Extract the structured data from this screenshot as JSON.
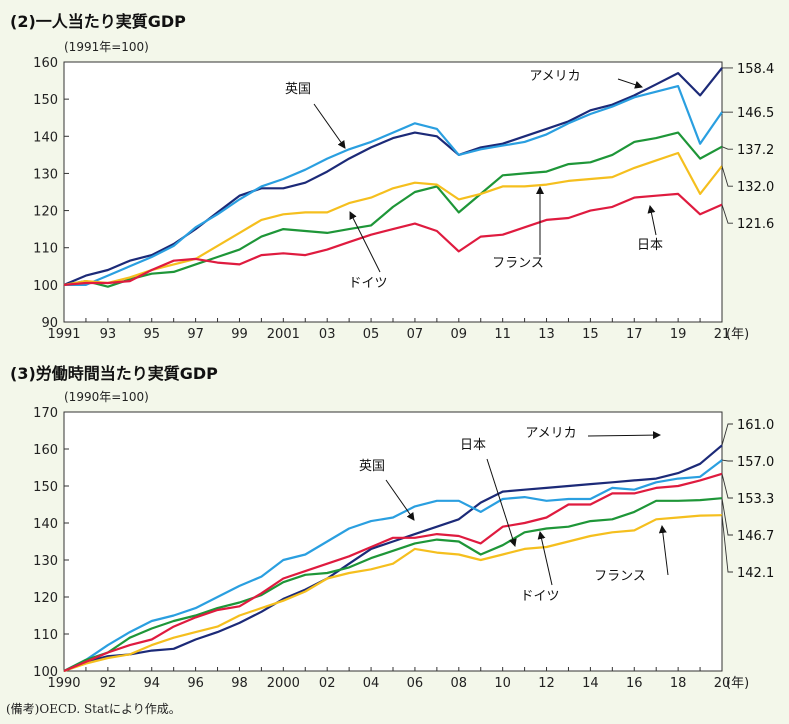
{
  "page": {
    "note": "(備考)OECD. Statにより作成。"
  },
  "colors": {
    "usa": "#1c2a78",
    "uk": "#2a9fe0",
    "germany": "#1e9638",
    "france": "#f5bf1e",
    "japan": "#df1b3f",
    "plot_bg": "#ffffff",
    "page_bg": "#f3f7ea"
  },
  "chart_data": [
    {
      "type": "line",
      "title": "(2)一人当たり実質GDP",
      "subtitle": "(1991年=100)",
      "x_unit_label": "(年)",
      "x": [
        1991,
        1992,
        1993,
        1994,
        1995,
        1996,
        1997,
        1998,
        1999,
        2000,
        2001,
        2002,
        2003,
        2004,
        2005,
        2006,
        2007,
        2008,
        2009,
        2010,
        2011,
        2012,
        2013,
        2014,
        2015,
        2016,
        2017,
        2018,
        2019,
        2020,
        2021
      ],
      "x_tick_labels": [
        "1991",
        "93",
        "95",
        "97",
        "99",
        "2001",
        "03",
        "05",
        "07",
        "09",
        "11",
        "13",
        "15",
        "17",
        "19",
        "21"
      ],
      "y_ticks": [
        90,
        100,
        110,
        120,
        130,
        140,
        150,
        160
      ],
      "ylim": [
        90,
        160
      ],
      "series": [
        {
          "key": "usa",
          "name": "アメリカ",
          "end_label": "158.4",
          "values": [
            100,
            102.5,
            104,
            106.5,
            108,
            111,
            115,
            119.5,
            124,
            126,
            126,
            127.5,
            130.5,
            134,
            137,
            139.5,
            141,
            140,
            135,
            137,
            138,
            140,
            142,
            144,
            147,
            148.5,
            151,
            154,
            157,
            151,
            158.4
          ]
        },
        {
          "key": "uk",
          "name": "英国",
          "end_label": "146.5",
          "values": [
            100,
            100,
            102.5,
            105,
            107.5,
            110.5,
            115.5,
            119,
            123,
            126.5,
            128.5,
            131,
            134,
            136.5,
            138.5,
            141,
            143.5,
            142,
            135,
            136.5,
            137.5,
            138.5,
            140.5,
            143.5,
            146,
            148,
            150.5,
            152,
            153.5,
            138,
            146.5
          ]
        },
        {
          "key": "germany",
          "name": "ドイツ",
          "end_label": "137.2",
          "values": [
            100,
            101,
            99.5,
            101.5,
            103,
            103.5,
            105.5,
            107.5,
            109.5,
            113,
            115,
            114.5,
            114,
            115,
            116,
            121,
            125,
            126.5,
            119.5,
            124.5,
            129.5,
            130,
            130.5,
            132.5,
            133,
            135,
            138.5,
            139.5,
            141,
            134,
            137.2
          ]
        },
        {
          "key": "france",
          "name": "フランス",
          "end_label": "132.0",
          "values": [
            100,
            101,
            100.5,
            102,
            104,
            105.5,
            107,
            110.5,
            114,
            117.5,
            119,
            119.5,
            119.5,
            122,
            123.5,
            126,
            127.5,
            127,
            123,
            124.5,
            126.5,
            126.5,
            127,
            128,
            128.5,
            129,
            131.5,
            133.5,
            135.5,
            124.5,
            132.0
          ]
        },
        {
          "key": "japan",
          "name": "日本",
          "end_label": "121.6",
          "values": [
            100,
            100.5,
            100.5,
            101,
            104,
            106.5,
            107,
            106,
            105.5,
            108,
            108.5,
            108,
            109.5,
            111.5,
            113.5,
            115,
            116.5,
            114.5,
            109,
            113,
            113.5,
            115.5,
            117.5,
            118,
            120,
            121,
            123.5,
            124,
            124.5,
            119,
            121.6
          ]
        }
      ]
    },
    {
      "type": "line",
      "title": "(3)労働時間当たり実質GDP",
      "subtitle": "(1990年=100)",
      "x_unit_label": "(年)",
      "x": [
        1990,
        1991,
        1992,
        1993,
        1994,
        1995,
        1996,
        1997,
        1998,
        1999,
        2000,
        2001,
        2002,
        2003,
        2004,
        2005,
        2006,
        2007,
        2008,
        2009,
        2010,
        2011,
        2012,
        2013,
        2014,
        2015,
        2016,
        2017,
        2018,
        2019,
        2020
      ],
      "x_tick_labels": [
        "1990",
        "92",
        "94",
        "96",
        "98",
        "2000",
        "02",
        "04",
        "06",
        "08",
        "10",
        "12",
        "14",
        "16",
        "18",
        "20"
      ],
      "y_ticks": [
        100,
        110,
        120,
        130,
        140,
        150,
        160,
        170
      ],
      "ylim": [
        100,
        170
      ],
      "series": [
        {
          "key": "usa",
          "name": "アメリカ",
          "end_label": "161.0",
          "values": [
            100,
            102.5,
            104,
            104.5,
            105.5,
            106,
            108.5,
            110.5,
            113,
            116,
            119.5,
            122,
            125,
            129,
            133,
            135,
            137,
            139,
            141,
            145.5,
            148.5,
            149,
            149.5,
            150,
            150.5,
            151,
            151.5,
            152,
            153.5,
            156,
            161.0
          ]
        },
        {
          "key": "uk",
          "name": "英国",
          "end_label": "157.0",
          "values": [
            100,
            103,
            107,
            110.5,
            113.5,
            115,
            117,
            120,
            123,
            125.5,
            130,
            131.5,
            135,
            138.5,
            140.5,
            141.5,
            144.5,
            146,
            146,
            143,
            146.5,
            147,
            146,
            146.5,
            146.5,
            149.5,
            149,
            151,
            152,
            152.5,
            157.0
          ]
        },
        {
          "key": "germany",
          "name": "ドイツ",
          "end_label": "146.7",
          "values": [
            100,
            103,
            105,
            109,
            111.5,
            113.5,
            115,
            117,
            118.5,
            120.5,
            124,
            126,
            126.5,
            128,
            130.5,
            132.5,
            134.5,
            135.5,
            135,
            131.5,
            134,
            137.5,
            138.5,
            139,
            140.5,
            141,
            143,
            146,
            146,
            146.2,
            146.7
          ]
        },
        {
          "key": "france",
          "name": "フランス",
          "end_label": "142.1",
          "values": [
            100,
            102,
            103.5,
            104.5,
            107,
            109,
            110.5,
            112,
            115,
            117,
            119,
            121.5,
            125,
            126.5,
            127.5,
            129,
            133,
            132,
            131.5,
            130,
            131.5,
            133,
            133.5,
            135,
            136.5,
            137.5,
            138,
            141,
            141.5,
            142,
            142.1
          ]
        },
        {
          "key": "japan",
          "name": "日本",
          "end_label": "153.3",
          "values": [
            100,
            102.5,
            105,
            107,
            108.5,
            112,
            114.5,
            116.5,
            117.5,
            121,
            125,
            127,
            129,
            131,
            133.5,
            136,
            136,
            137,
            136.5,
            134.5,
            139,
            140,
            141.5,
            145,
            145,
            148,
            148,
            149.5,
            150,
            151.5,
            153.3
          ]
        }
      ]
    }
  ],
  "annotations_1": [
    {
      "text": "アメリカ",
      "series": "usa",
      "text_x": 555,
      "text_y": 80
    },
    {
      "text": "英国",
      "series": "uk",
      "text_x": 298,
      "text_y": 93
    },
    {
      "text": "ドイツ",
      "series": "germany",
      "text_x": 368,
      "text_y": 287
    },
    {
      "text": "フランス",
      "series": "france",
      "text_x": 518,
      "text_y": 267
    },
    {
      "text": "日本",
      "series": "japan",
      "text_x": 650,
      "text_y": 249
    }
  ],
  "annotations_2": [
    {
      "text": "アメリカ",
      "series": "usa",
      "text_x": 551,
      "text_y": 437
    },
    {
      "text": "英国",
      "series": "uk",
      "text_x": 372,
      "text_y": 470
    },
    {
      "text": "日本",
      "series": "japan",
      "text_x": 473,
      "text_y": 449
    },
    {
      "text": "ドイツ",
      "series": "germany",
      "text_x": 540,
      "text_y": 600
    },
    {
      "text": "フランス",
      "series": "france",
      "text_x": 620,
      "text_y": 580
    }
  ]
}
